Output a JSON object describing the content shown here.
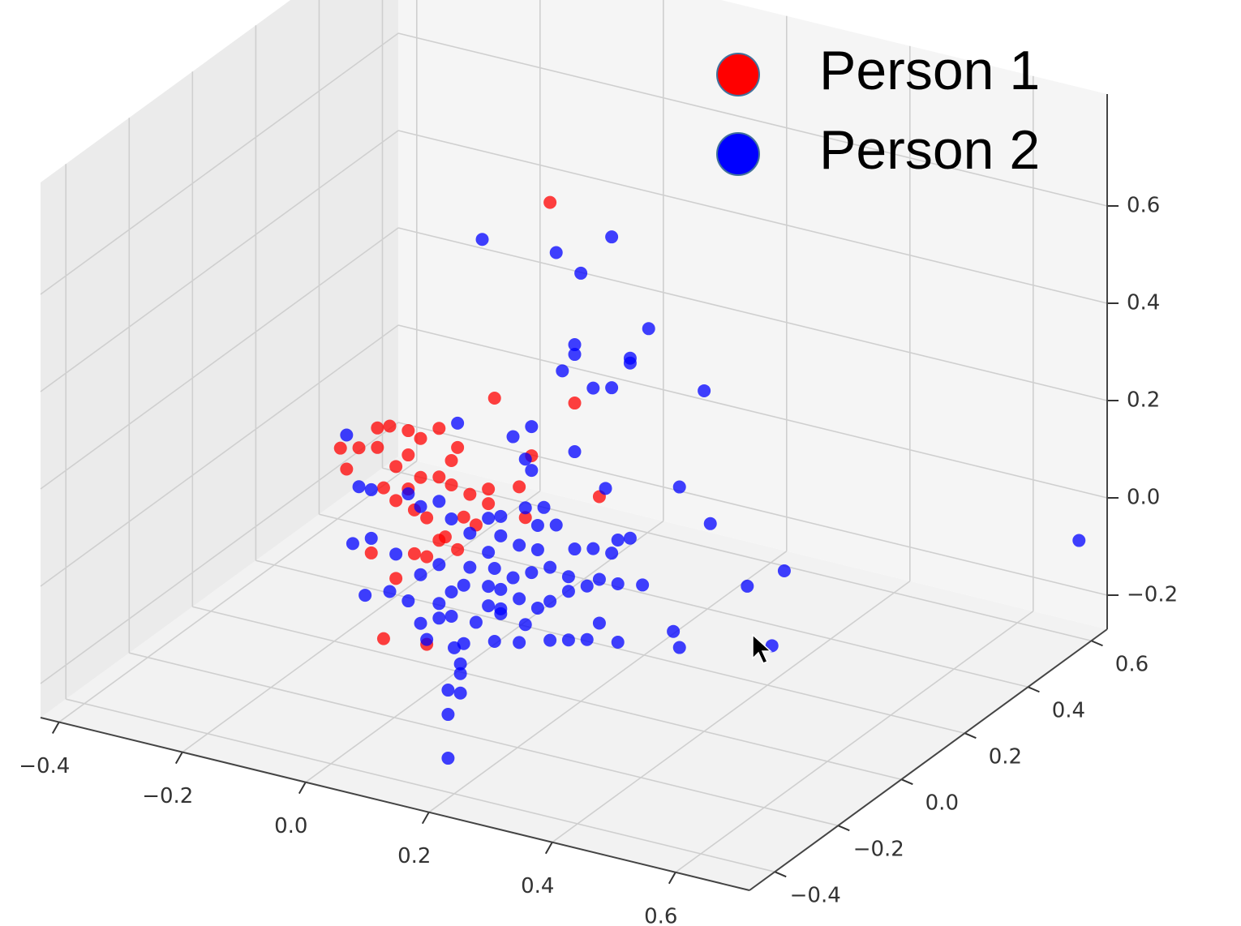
{
  "chart_data": {
    "type": "scatter3d",
    "series": [
      {
        "name": "Person 1",
        "color": "#ff0000",
        "x": [
          0.15,
          0.06,
          0.19,
          0.23,
          -0.12,
          -0.1,
          -0.14,
          -0.19,
          -0.16,
          -0.13,
          -0.11,
          -0.13,
          -0.08,
          -0.06,
          -0.03,
          0,
          -0.18,
          -0.08,
          -0.1,
          -0.12,
          -0.08,
          -0.06,
          -0.03,
          -0.01,
          0.02,
          0.05,
          -0.1,
          -0.07,
          -0.05,
          -0.02,
          0.01,
          0.03,
          -0.07,
          -0.05,
          -0.03,
          0,
          0.1,
          0.12,
          0.11,
          -0.05,
          -0.01,
          0.05
        ],
        "y": [
          0,
          0,
          0,
          0,
          0,
          0,
          0,
          0,
          0,
          0,
          0,
          0,
          0,
          0,
          0,
          0,
          0,
          0,
          0,
          0,
          0,
          0,
          0,
          0,
          0,
          0,
          0,
          0,
          0,
          0,
          0,
          0,
          0,
          0,
          0,
          0,
          0,
          0,
          0,
          0,
          0,
          0
        ],
        "z": [
          0.74,
          0.31,
          0.34,
          0.16,
          -0.24,
          -0.11,
          -0.07,
          0.13,
          0.14,
          0.15,
          0.2,
          0.19,
          0.2,
          0.19,
          0.22,
          0.19,
          0.09,
          0.15,
          0.12,
          0.07,
          0.08,
          0.11,
          0.12,
          0.11,
          0.1,
          0.09,
          0.05,
          0.04,
          0.03,
          0,
          0.05,
          0.04,
          -0.05,
          -0.05,
          -0.01,
          -0.02,
          0.14,
          0.21,
          0.08,
          -0.23,
          0.16,
          0.12
        ]
      },
      {
        "name": "Person 2",
        "color": "#0000ff",
        "x": [
          0.04,
          0.16,
          0.25,
          0.2,
          0.31,
          0.19,
          0.19,
          0.28,
          0.28,
          0.17,
          0.22,
          0.25,
          0.4,
          0.12,
          0.09,
          0,
          0.19,
          0.12,
          0.11,
          -0.18,
          0.36,
          0.24,
          0.41,
          0.7,
          0.53,
          0.47,
          0.51,
          0.19,
          0.19,
          0.19,
          0.21,
          0.21,
          0.21,
          0.2,
          -0.05,
          -0.16,
          -0.14,
          -0.17,
          -0.14,
          -0.1,
          -0.06,
          -0.15,
          -0.11,
          -0.08,
          -0.03,
          -0.01,
          0.01,
          0.05,
          0.07,
          0.1,
          0.13,
          0.15,
          0.18,
          0.21,
          0.23,
          0.26,
          0.3,
          0.35,
          0.36,
          0.26,
          0.23,
          0.21,
          0.18,
          0.15,
          0.1,
          0.06,
          0.01,
          0.03,
          0.07,
          0.11,
          0.05,
          0.07,
          0.1,
          0.13,
          0.15,
          0.18,
          0.19,
          0.22,
          0.25,
          0.26,
          0.28,
          0.07,
          0.11,
          0.14,
          0.16,
          0.13,
          -0.01,
          0.02,
          0.05,
          -0.06,
          -0.03,
          -0.08,
          0.02,
          0.06,
          0.09,
          0.12,
          -0.03,
          -0.01,
          -0.03,
          -0.06,
          0.05,
          0.07
        ],
        "y": [
          0,
          0,
          0,
          0,
          0,
          0,
          0,
          0,
          0,
          0,
          0,
          0,
          0,
          0,
          0,
          0,
          0,
          0,
          0,
          0,
          0,
          0,
          0,
          0.6,
          0,
          0,
          0,
          -0.4,
          -0.4,
          -0.4,
          -0.4,
          -0.4,
          -0.4,
          -0.4,
          0,
          0,
          0,
          0,
          0,
          0,
          0,
          0,
          0,
          0,
          0,
          0,
          0,
          0,
          0,
          0,
          0,
          0,
          0,
          0,
          0,
          0,
          0,
          0,
          0,
          0,
          0,
          0,
          0,
          0,
          0,
          0,
          0,
          0,
          0,
          0,
          0,
          0,
          0,
          0,
          0,
          0,
          0,
          0,
          0,
          0,
          0,
          0,
          0,
          0,
          0,
          0,
          0,
          0,
          0,
          0,
          0,
          0,
          0,
          0,
          0,
          0,
          0,
          0,
          0,
          0,
          0,
          0
        ],
        "z": [
          0.63,
          0.64,
          0.7,
          0.61,
          0.53,
          0.46,
          0.44,
          0.46,
          0.45,
          0.4,
          0.38,
          0.39,
          0.43,
          0.27,
          0.24,
          0.24,
          0.24,
          0.18,
          0.2,
          0.16,
          0.22,
          0.18,
          0.16,
          -0.07,
          0.1,
          0.05,
          -0.06,
          -0.2,
          -0.11,
          -0.06,
          -0.06,
          -0.02,
          0,
          0.03,
          -0.22,
          0.06,
          0.06,
          -0.06,
          -0.04,
          -0.06,
          -0.09,
          -0.16,
          -0.14,
          -0.15,
          -0.14,
          -0.11,
          -0.09,
          -0.08,
          -0.08,
          -0.09,
          -0.1,
          -0.08,
          -0.05,
          -0.03,
          -0.01,
          -0.01,
          0,
          -0.08,
          -0.11,
          -0.13,
          -0.1,
          -0.14,
          -0.15,
          -0.16,
          -0.18,
          -0.19,
          -0.21,
          -0.16,
          -0.13,
          -0.14,
          -0.01,
          0.03,
          0.02,
          0.02,
          -0.01,
          -0.02,
          0.04,
          0.05,
          0.05,
          0.08,
          0.09,
          0.07,
          0.1,
          0.11,
          0.08,
          0.07,
          0.04,
          0.02,
          0.06,
          0.05,
          0.07,
          0.07,
          -0.05,
          -0.04,
          -0.05,
          -0.03,
          -0.06,
          -0.16,
          -0.17,
          -0.19,
          -0.12,
          -0.12
        ]
      }
    ],
    "xlim": [
      -0.43,
      0.72
    ],
    "ylim": [
      -0.48,
      0.65
    ],
    "zlim": [
      -0.27,
      0.83
    ],
    "xticks": [
      {
        "value": -0.4,
        "label": "−0.4"
      },
      {
        "value": -0.2,
        "label": "−0.2"
      },
      {
        "value": 0,
        "label": "0.0"
      },
      0.2,
      0.4,
      0.6
    ],
    "yticks": [
      {
        "value": -0.4,
        "label": "−0.4"
      },
      {
        "value": -0.2,
        "label": "−0.2"
      },
      {
        "value": 0,
        "label": "0.0"
      },
      0.2,
      0.4,
      0.6
    ],
    "zticks": [
      {
        "value": -0.2,
        "label": "−0.2"
      },
      {
        "value": 0,
        "label": "0.0"
      },
      0.2,
      0.4,
      0.6
    ],
    "grid": true,
    "legend": "upper right"
  }
}
